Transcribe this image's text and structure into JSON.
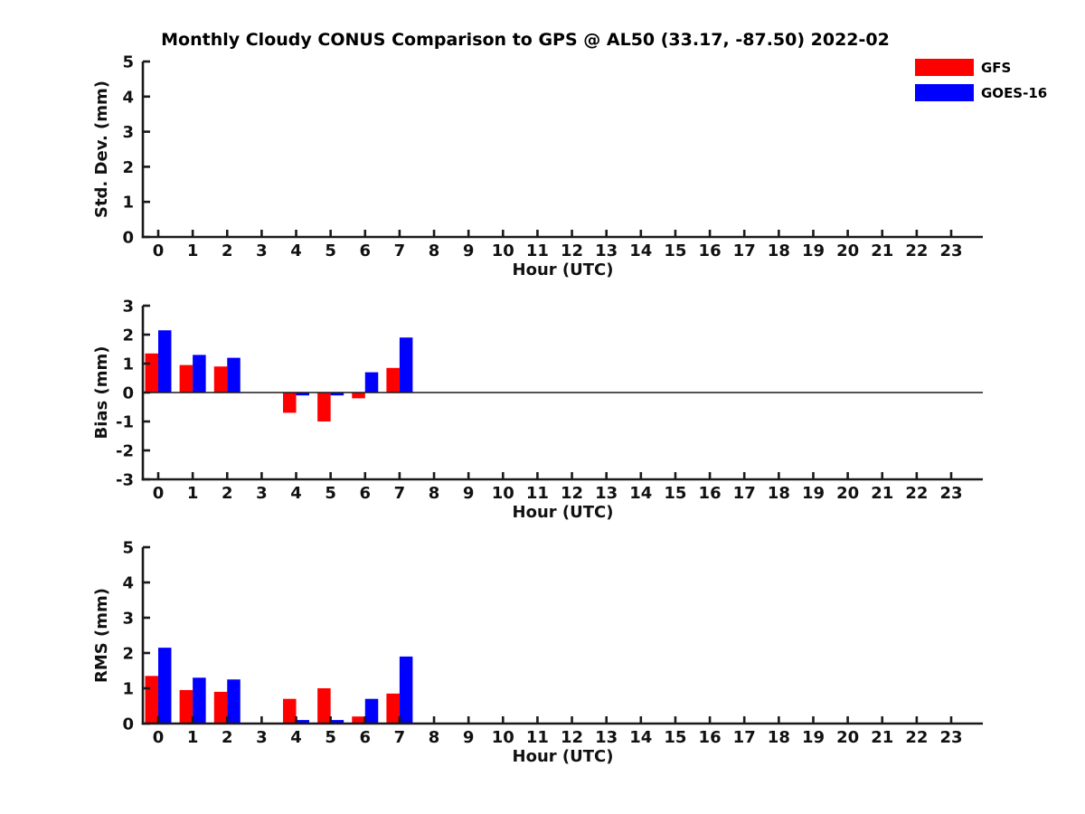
{
  "figure": {
    "title": "Monthly Cloudy CONUS Comparison to GPS @ AL50 (33.17, -87.50) 2022-02",
    "background_color": "#ffffff",
    "axis_color": "#1a1a1a",
    "text_color": "#000000"
  },
  "legend": {
    "position": "top-right",
    "items": [
      {
        "label": "GFS",
        "color": "#ff0000"
      },
      {
        "label": "GOES-16",
        "color": "#0000ff"
      }
    ]
  },
  "chart_data": [
    {
      "id": "std_dev",
      "type": "bar",
      "title": "",
      "xlabel": "Hour (UTC)",
      "ylabel": "Std. Dev. (mm)",
      "categories": [
        0,
        1,
        2,
        3,
        4,
        5,
        6,
        7,
        8,
        9,
        10,
        11,
        12,
        13,
        14,
        15,
        16,
        17,
        18,
        19,
        20,
        21,
        22,
        23
      ],
      "series": [
        {
          "name": "GFS",
          "color": "#ff0000",
          "values": [
            0,
            0,
            0,
            0,
            0,
            0,
            0,
            0,
            0,
            0,
            0,
            0,
            0,
            0,
            0,
            0,
            0,
            0,
            0,
            0,
            0,
            0,
            0,
            0
          ]
        },
        {
          "name": "GOES-16",
          "color": "#0000ff",
          "values": [
            0,
            0,
            0,
            0,
            0,
            0,
            0,
            0,
            0,
            0,
            0,
            0,
            0,
            0,
            0,
            0,
            0,
            0,
            0,
            0,
            0,
            0,
            0,
            0
          ]
        }
      ],
      "ylim": [
        0,
        5
      ],
      "yticks": [
        0,
        1,
        2,
        3,
        4,
        5
      ],
      "xlim": [
        -0.45,
        23.95
      ],
      "zero_line": false,
      "grid": false,
      "legend_position": "outside-top-right"
    },
    {
      "id": "bias",
      "type": "bar",
      "title": "",
      "xlabel": "Hour (UTC)",
      "ylabel": "Bias (mm)",
      "categories": [
        0,
        1,
        2,
        3,
        4,
        5,
        6,
        7,
        8,
        9,
        10,
        11,
        12,
        13,
        14,
        15,
        16,
        17,
        18,
        19,
        20,
        21,
        22,
        23
      ],
      "series": [
        {
          "name": "GFS",
          "color": "#ff0000",
          "values": [
            1.35,
            0.95,
            0.9,
            0,
            -0.7,
            -1.0,
            -0.2,
            0.85,
            0,
            0,
            0,
            0,
            0,
            0,
            0,
            0,
            0,
            0,
            0,
            0,
            0,
            0,
            0,
            0
          ]
        },
        {
          "name": "GOES-16",
          "color": "#0000ff",
          "values": [
            2.15,
            1.3,
            1.2,
            0,
            -0.1,
            -0.1,
            0.7,
            1.9,
            0,
            0,
            0,
            0,
            0,
            0,
            0,
            0,
            0,
            0,
            0,
            0,
            0,
            0,
            0,
            0
          ]
        }
      ],
      "ylim": [
        -3,
        3
      ],
      "yticks": [
        -3,
        -2,
        -1,
        0,
        1,
        2,
        3
      ],
      "xlim": [
        -0.45,
        23.95
      ],
      "zero_line": true,
      "grid": false,
      "legend_position": "none"
    },
    {
      "id": "rms",
      "type": "bar",
      "title": "",
      "xlabel": "Hour (UTC)",
      "ylabel": "RMS (mm)",
      "categories": [
        0,
        1,
        2,
        3,
        4,
        5,
        6,
        7,
        8,
        9,
        10,
        11,
        12,
        13,
        14,
        15,
        16,
        17,
        18,
        19,
        20,
        21,
        22,
        23
      ],
      "series": [
        {
          "name": "GFS",
          "color": "#ff0000",
          "values": [
            1.35,
            0.95,
            0.9,
            0,
            0.7,
            1.0,
            0.2,
            0.85,
            0,
            0,
            0,
            0,
            0,
            0,
            0,
            0,
            0,
            0,
            0,
            0,
            0,
            0,
            0,
            0
          ]
        },
        {
          "name": "GOES-16",
          "color": "#0000ff",
          "values": [
            2.15,
            1.3,
            1.25,
            0,
            0.1,
            0.1,
            0.7,
            1.9,
            0,
            0,
            0,
            0,
            0,
            0,
            0,
            0,
            0,
            0,
            0,
            0,
            0,
            0,
            0,
            0
          ]
        }
      ],
      "ylim": [
        0,
        5
      ],
      "yticks": [
        0,
        1,
        2,
        3,
        4,
        5
      ],
      "xlim": [
        -0.45,
        23.95
      ],
      "zero_line": false,
      "grid": false,
      "legend_position": "none"
    }
  ]
}
